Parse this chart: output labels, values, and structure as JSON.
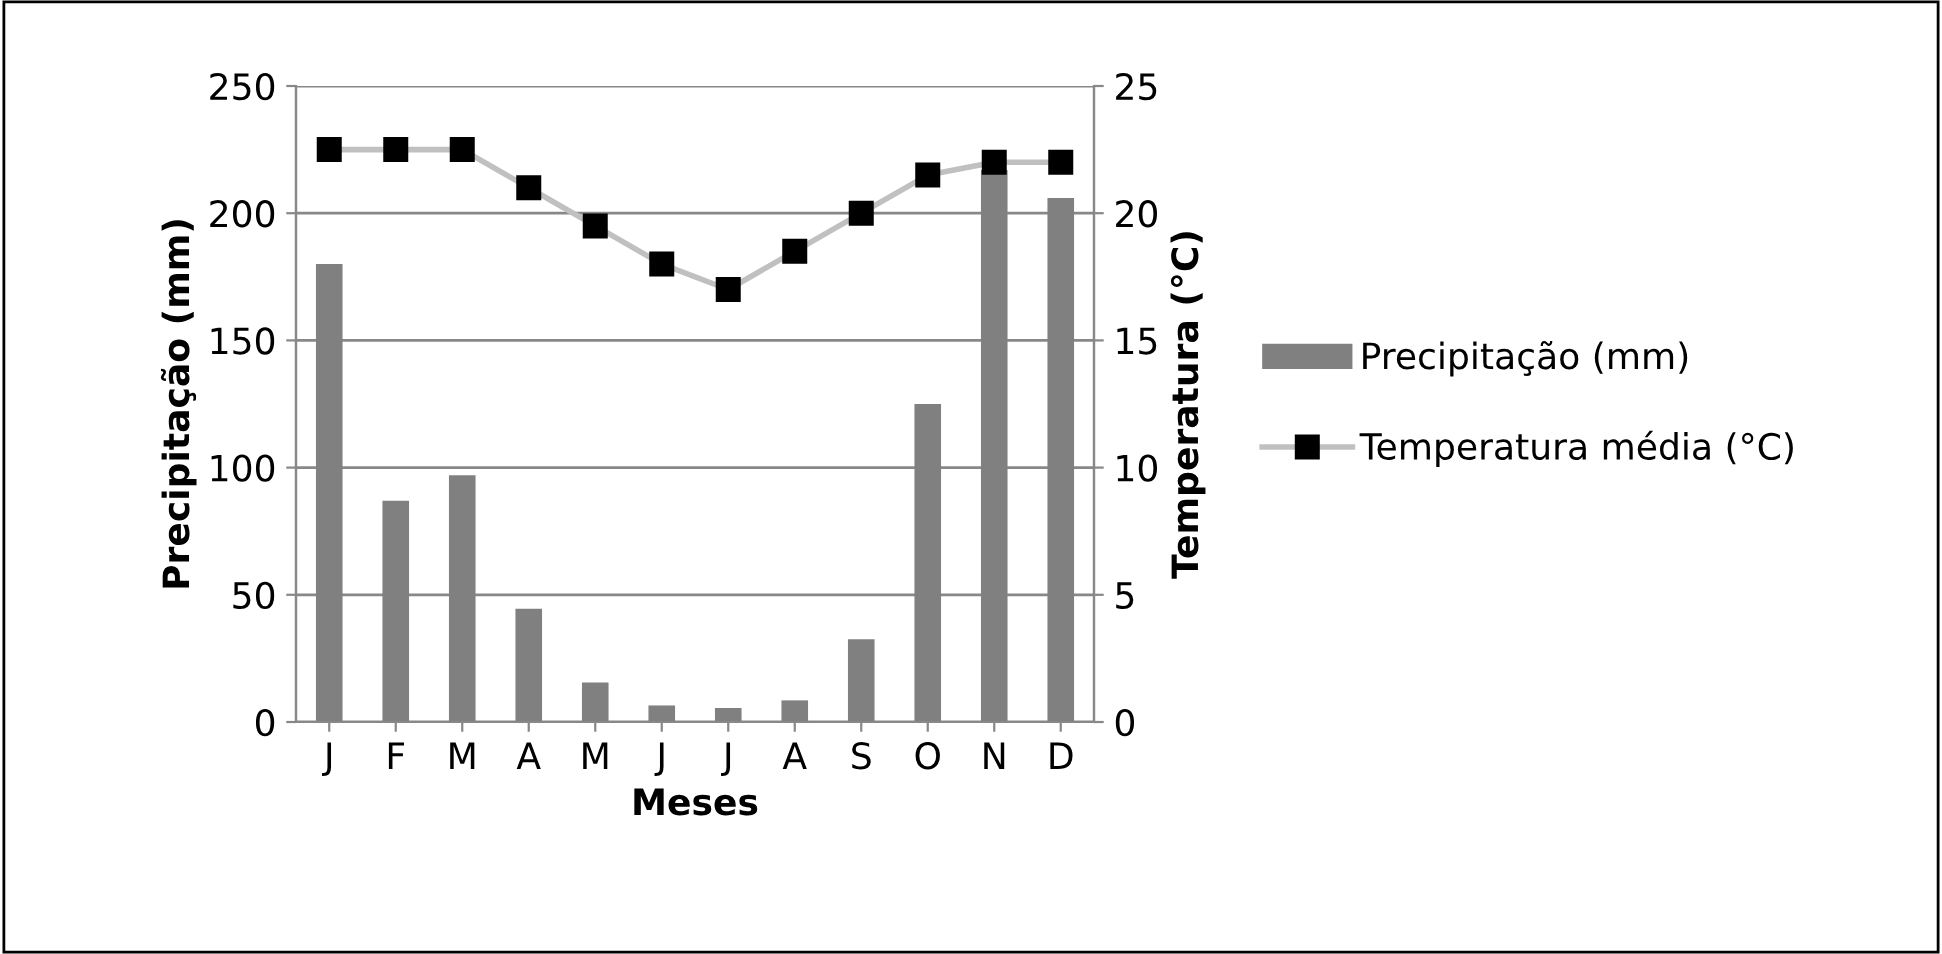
{
  "chart_data": {
    "type": "bar",
    "xlabel": "Meses",
    "ylabel": "Precipitação (mm)",
    "y2label": "Temperatura (°C)",
    "categories": [
      "J",
      "F",
      "M",
      "A",
      "M",
      "J",
      "J",
      "A",
      "S",
      "O",
      "N",
      "D"
    ],
    "series": [
      {
        "name": "Precipitação (mm)",
        "color": "#808080",
        "values": [
          180,
          87,
          97,
          44.5,
          15.5,
          6.5,
          5.5,
          8.5,
          32.5,
          125,
          217,
          206
        ]
      },
      {
        "name": "Temperatura média (°C)",
        "type": "line",
        "axis": "y2",
        "color": "#c0c0c0",
        "marker": "square",
        "values": [
          22.5,
          22.5,
          22.5,
          21,
          19.5,
          18,
          17,
          18.5,
          20,
          21.5,
          22,
          22
        ]
      }
    ],
    "ylim": [
      0,
      250
    ],
    "yticks": [
      0,
      50,
      100,
      150,
      200,
      250
    ],
    "y2lim": [
      0,
      25
    ],
    "y2ticks": [
      0,
      5,
      10,
      15,
      20,
      25
    ],
    "grid": "y",
    "legend": "right"
  }
}
